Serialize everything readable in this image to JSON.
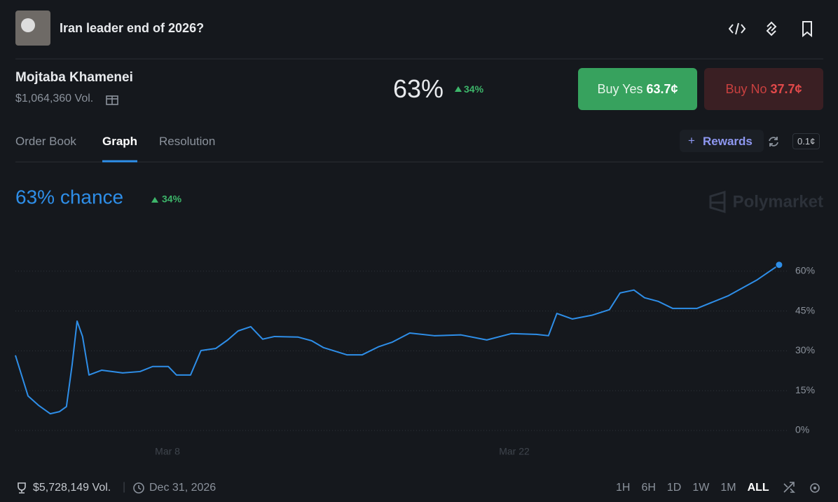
{
  "header": {
    "title": "Iran leader end of 2026?"
  },
  "market": {
    "name": "Mojtaba Khamenei",
    "volume": "$1,064,360 Vol.",
    "probability": "63%",
    "change": "34%",
    "buy_yes": {
      "label": "Buy Yes",
      "price": "63.7¢"
    },
    "buy_no": {
      "label": "Buy No",
      "price": "37.7¢"
    }
  },
  "tabs": [
    "Order Book",
    "Graph",
    "Resolution"
  ],
  "rewards": "Rewards",
  "tick_size": "0.1¢",
  "chart_data": {
    "type": "line",
    "title": "63% chance",
    "change": "34%",
    "brand": "Polymarket",
    "color": "#2e8ee8",
    "x": [
      1.86,
      2.37,
      2.79,
      3.27,
      3.64,
      3.92,
      4.15,
      4.35,
      4.57,
      4.83,
      5.34,
      6.19,
      6.89,
      7.4,
      8.03,
      8.36,
      8.93,
      9.35,
      9.95,
      10.43,
      10.85,
      11.36,
      11.84,
      12.32,
      13.26,
      13.82,
      14.3,
      15.24,
      15.86,
      16.51,
      17.08,
      17.78,
      18.77,
      19.85,
      20.89,
      21.88,
      22.88,
      23.38,
      23.72,
      24.34,
      25.13,
      25.84,
      26.27,
      26.83,
      27.26,
      27.82,
      28.39,
      29.38,
      30.65,
      31.78,
      32.69
    ],
    "values": [
      28.3,
      13.0,
      9.5,
      6.3,
      7.1,
      9.0,
      24.8,
      41.2,
      35.4,
      20.9,
      22.7,
      21.7,
      22.2,
      24.1,
      24.1,
      20.9,
      20.9,
      30.1,
      30.9,
      34.1,
      37.5,
      39.1,
      34.4,
      35.4,
      35.2,
      33.8,
      31.2,
      28.5,
      28.5,
      31.5,
      33.3,
      36.7,
      35.7,
      36.0,
      34.1,
      36.5,
      36.2,
      35.7,
      44.1,
      42.0,
      43.4,
      45.5,
      51.8,
      52.9,
      50.0,
      48.6,
      46.0,
      46.0,
      50.8,
      56.6,
      62.4
    ],
    "xlim": [
      1.86,
      33.06
    ],
    "xticks": [
      {
        "value": 8,
        "label": "Mar 8"
      },
      {
        "value": 22,
        "label": "Mar 22"
      }
    ],
    "ylim": [
      0,
      75
    ],
    "yticks": [
      {
        "value": 0,
        "label": "0%"
      },
      {
        "value": 15,
        "label": "15%"
      },
      {
        "value": 30,
        "label": "30%"
      },
      {
        "value": 45,
        "label": "45%"
      },
      {
        "value": 60,
        "label": "60%"
      }
    ],
    "grid": true
  },
  "footer": {
    "volume": "$5,728,149 Vol.",
    "end_date": "Dec 31, 2026",
    "ranges": [
      "1H",
      "6H",
      "1D",
      "1W",
      "1M",
      "ALL"
    ]
  }
}
